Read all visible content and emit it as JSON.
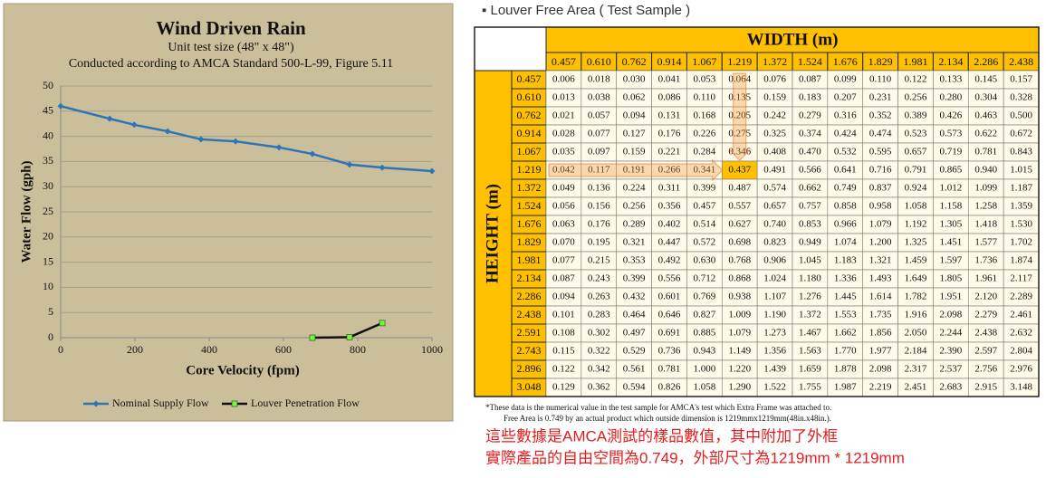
{
  "chart_data": {
    "type": "line",
    "title": "Wind Driven Rain",
    "subtitle": [
      "Unit test size (48\" x 48\")",
      "Conducted according to AMCA Standard 500-L-99, Figure 5.11"
    ],
    "x_label": "Core Velocity (fpm)",
    "y_label": "Water Flow (gph)",
    "xlim": [
      0,
      1000
    ],
    "xticks": [
      0,
      200,
      400,
      600,
      800,
      1000
    ],
    "ylim": [
      0,
      50
    ],
    "yticks": [
      0,
      5,
      10,
      15,
      20,
      25,
      30,
      35,
      40,
      45,
      50
    ],
    "grid": true,
    "legend": "bottom",
    "series": [
      {
        "name": "Nominal Supply Flow",
        "color": "#2e75b6",
        "marker": "diamond",
        "x": [
          0,
          132,
          198,
          288,
          378,
          471,
          588,
          678,
          778,
          866,
          1000
        ],
        "values": [
          46.0,
          43.5,
          42.3,
          41.0,
          39.4,
          39.0,
          37.8,
          36.5,
          34.4,
          33.8,
          33.1
        ]
      },
      {
        "name": "Louver Penetration Flow",
        "color": "#111111",
        "marker": "square",
        "marker_color": "#66ff33",
        "x": [
          678,
          778,
          866
        ],
        "values": [
          0,
          0.1,
          2.9
        ]
      }
    ]
  },
  "table": {
    "section_title": "Louver Free Area ( Test Sample )",
    "column_header": "WIDTH  (m)",
    "row_header": "HEIGHT  (m)",
    "columns": [
      "0.457",
      "0.610",
      "0.762",
      "0.914",
      "1.067",
      "1.219",
      "1.372",
      "1.524",
      "1.676",
      "1.829",
      "1.981",
      "2.134",
      "2.286",
      "2.438"
    ],
    "rows": [
      {
        "label": "0.457",
        "cells": [
          "0.006",
          "0.018",
          "0.030",
          "0.041",
          "0.053",
          "0.064",
          "0.076",
          "0.087",
          "0.099",
          "0.110",
          "0.122",
          "0.133",
          "0.145",
          "0.157"
        ]
      },
      {
        "label": "0.610",
        "cells": [
          "0.013",
          "0.038",
          "0.062",
          "0.086",
          "0.110",
          "0.135",
          "0.159",
          "0.183",
          "0.207",
          "0.231",
          "0.256",
          "0.280",
          "0.304",
          "0.328"
        ]
      },
      {
        "label": "0.762",
        "cells": [
          "0.021",
          "0.057",
          "0.094",
          "0.131",
          "0.168",
          "0.205",
          "0.242",
          "0.279",
          "0.316",
          "0.352",
          "0.389",
          "0.426",
          "0.463",
          "0.500"
        ]
      },
      {
        "label": "0.914",
        "cells": [
          "0.028",
          "0.077",
          "0.127",
          "0.176",
          "0.226",
          "0.275",
          "0.325",
          "0.374",
          "0.424",
          "0.474",
          "0.523",
          "0.573",
          "0.622",
          "0.672"
        ]
      },
      {
        "label": "1.067",
        "cells": [
          "0.035",
          "0.097",
          "0.159",
          "0.221",
          "0.284",
          "0.346",
          "0.408",
          "0.470",
          "0.532",
          "0.595",
          "0.657",
          "0.719",
          "0.781",
          "0.843"
        ]
      },
      {
        "label": "1.219",
        "cells": [
          "0.042",
          "0.117",
          "0.191",
          "0.266",
          "0.341",
          "0.437",
          "0.491",
          "0.566",
          "0.641",
          "0.716",
          "0.791",
          "0.865",
          "0.940",
          "1.015"
        ]
      },
      {
        "label": "1.372",
        "cells": [
          "0.049",
          "0.136",
          "0.224",
          "0.311",
          "0.399",
          "0.487",
          "0.574",
          "0.662",
          "0.749",
          "0.837",
          "0.924",
          "1.012",
          "1.099",
          "1.187"
        ]
      },
      {
        "label": "1.524",
        "cells": [
          "0.056",
          "0.156",
          "0.256",
          "0.356",
          "0.457",
          "0.557",
          "0.657",
          "0.757",
          "0.858",
          "0.958",
          "1.058",
          "1.158",
          "1.258",
          "1.359"
        ]
      },
      {
        "label": "1.676",
        "cells": [
          "0.063",
          "0.176",
          "0.289",
          "0.402",
          "0.514",
          "0.627",
          "0.740",
          "0.853",
          "0.966",
          "1.079",
          "1.192",
          "1.305",
          "1.418",
          "1.530"
        ]
      },
      {
        "label": "1.829",
        "cells": [
          "0.070",
          "0.195",
          "0.321",
          "0.447",
          "0.572",
          "0.698",
          "0.823",
          "0.949",
          "1.074",
          "1.200",
          "1.325",
          "1.451",
          "1.577",
          "1.702"
        ]
      },
      {
        "label": "1.981",
        "cells": [
          "0.077",
          "0.215",
          "0.353",
          "0.492",
          "0.630",
          "0.768",
          "0.906",
          "1.045",
          "1.183",
          "1.321",
          "1.459",
          "1.597",
          "1.736",
          "1.874"
        ]
      },
      {
        "label": "2.134",
        "cells": [
          "0.087",
          "0.243",
          "0.399",
          "0.556",
          "0.712",
          "0.868",
          "1.024",
          "1.180",
          "1.336",
          "1.493",
          "1.649",
          "1.805",
          "1.961",
          "2.117"
        ]
      },
      {
        "label": "2.286",
        "cells": [
          "0.094",
          "0.263",
          "0.432",
          "0.601",
          "0.769",
          "0.938",
          "1.107",
          "1.276",
          "1.445",
          "1.614",
          "1.782",
          "1.951",
          "2.120",
          "2.289"
        ]
      },
      {
        "label": "2.438",
        "cells": [
          "0.101",
          "0.283",
          "0.464",
          "0.646",
          "0.827",
          "1.009",
          "1.190",
          "1.372",
          "1.553",
          "1.735",
          "1.916",
          "2.098",
          "2.279",
          "2.461"
        ]
      },
      {
        "label": "2.591",
        "cells": [
          "0.108",
          "0.302",
          "0.497",
          "0.691",
          "0.885",
          "1.079",
          "1.273",
          "1.467",
          "1.662",
          "1.856",
          "2.050",
          "2.244",
          "2.438",
          "2.632"
        ]
      },
      {
        "label": "2.743",
        "cells": [
          "0.115",
          "0.322",
          "0.529",
          "0.736",
          "0.943",
          "1.149",
          "1.356",
          "1.563",
          "1.770",
          "1.977",
          "2.184",
          "2.390",
          "2.597",
          "2.804"
        ]
      },
      {
        "label": "2.896",
        "cells": [
          "0.122",
          "0.342",
          "0.561",
          "0.781",
          "1.000",
          "1.220",
          "1.439",
          "1.659",
          "1.878",
          "2.098",
          "2.317",
          "2.537",
          "2.756",
          "2.976"
        ]
      },
      {
        "label": "3.048",
        "cells": [
          "0.129",
          "0.362",
          "0.594",
          "0.826",
          "1.058",
          "1.290",
          "1.522",
          "1.755",
          "1.987",
          "2.219",
          "2.451",
          "2.683",
          "2.915",
          "3.148"
        ]
      }
    ]
  },
  "notes": [
    "*These data is the numerical value in the test sample for AMCA's test which Extra Frame was attached to.",
    "Free Area is 0.749 by an actual product which outside dimension is 1219mmx1219mm(48in.x48in.).",
    "這些數據是AMCA測試的樣品數值，其中附加了外框",
    "實際產品的自由空間為0.749，外部尺寸為1219mm * 1219mm"
  ]
}
